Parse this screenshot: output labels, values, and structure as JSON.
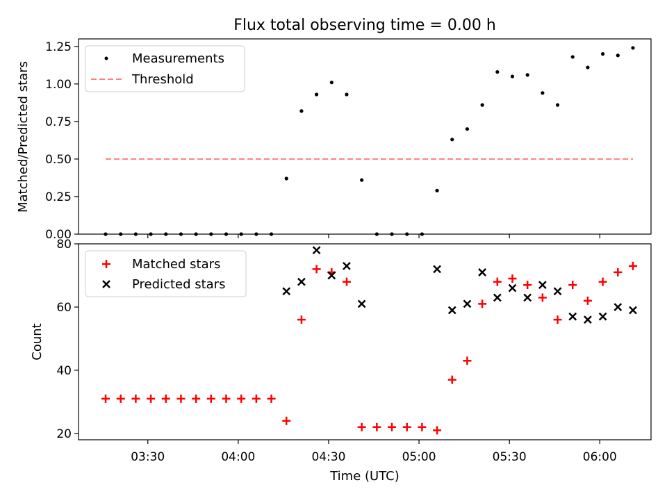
{
  "figure_title": "Flux total observing time = 0.00 h",
  "colors": {
    "measurements": "#000000",
    "threshold": "#ff7f7f",
    "matched": "#ff0000",
    "predicted": "#000000"
  },
  "chart_data": [
    {
      "type": "scatter",
      "title": "Flux total observing time = 0.00 h",
      "ylabel": "Matched/Predicted stars",
      "xlabel": "",
      "xlim": [
        "03:07",
        "06:17"
      ],
      "ylim": [
        0,
        1.3
      ],
      "yticks": [
        0.0,
        0.25,
        0.5,
        0.75,
        1.0,
        1.25
      ],
      "ytick_labels": [
        "0.00",
        "0.25",
        "0.50",
        "0.75",
        "1.00",
        "1.25"
      ],
      "xticks": [
        "03:30",
        "04:00",
        "04:30",
        "05:00",
        "05:30",
        "06:00"
      ],
      "legend_position": "top-left",
      "series": [
        {
          "name": "Measurements",
          "marker": "dot",
          "x": [
            "03:16",
            "03:21",
            "03:26",
            "03:31",
            "03:36",
            "03:41",
            "03:46",
            "03:51",
            "03:56",
            "04:01",
            "04:06",
            "04:11",
            "04:16",
            "04:21",
            "04:26",
            "04:31",
            "04:36",
            "04:41",
            "04:46",
            "04:51",
            "04:56",
            "05:01",
            "05:06",
            "05:11",
            "05:16",
            "05:21",
            "05:26",
            "05:31",
            "05:36",
            "05:41",
            "05:46",
            "05:51",
            "05:56",
            "06:01",
            "06:06",
            "06:11"
          ],
          "y": [
            0,
            0,
            0,
            0,
            0,
            0,
            0,
            0,
            0,
            0,
            0,
            0,
            0.37,
            0.82,
            0.93,
            1.01,
            0.93,
            0.36,
            0,
            0,
            0,
            0,
            0.29,
            0.63,
            0.7,
            0.86,
            1.08,
            1.05,
            1.06,
            0.94,
            0.86,
            1.18,
            1.11,
            1.2,
            1.19,
            1.24
          ]
        },
        {
          "name": "Threshold",
          "marker": "dashed-line",
          "x": [
            "03:16",
            "06:11"
          ],
          "y": [
            0.5,
            0.5
          ]
        }
      ]
    },
    {
      "type": "scatter",
      "title": "",
      "ylabel": "Count",
      "xlabel": "Time (UTC)",
      "xlim": [
        "03:07",
        "06:17"
      ],
      "ylim": [
        18,
        80
      ],
      "yticks": [
        20,
        40,
        60,
        80
      ],
      "ytick_labels": [
        "20",
        "40",
        "60",
        "80"
      ],
      "xticks": [
        "03:30",
        "04:00",
        "04:30",
        "05:00",
        "05:30",
        "06:00"
      ],
      "legend_position": "top-left",
      "series": [
        {
          "name": "Matched stars",
          "marker": "plus",
          "x": [
            "03:16",
            "03:21",
            "03:26",
            "03:31",
            "03:36",
            "03:41",
            "03:46",
            "03:51",
            "03:56",
            "04:01",
            "04:06",
            "04:11",
            "04:16",
            "04:21",
            "04:26",
            "04:31",
            "04:36",
            "04:41",
            "04:46",
            "04:51",
            "04:56",
            "05:01",
            "05:06",
            "05:11",
            "05:16",
            "05:21",
            "05:26",
            "05:31",
            "05:36",
            "05:41",
            "05:46",
            "05:51",
            "05:56",
            "06:01",
            "06:06",
            "06:11"
          ],
          "y": [
            31,
            31,
            31,
            31,
            31,
            31,
            31,
            31,
            31,
            31,
            31,
            31,
            24,
            56,
            72,
            71,
            68,
            22,
            22,
            22,
            22,
            22,
            21,
            37,
            43,
            61,
            68,
            69,
            67,
            63,
            56,
            67,
            62,
            68,
            71,
            73
          ]
        },
        {
          "name": "Predicted stars",
          "marker": "x",
          "x": [
            "04:16",
            "04:21",
            "04:26",
            "04:31",
            "04:36",
            "04:41",
            "05:06",
            "05:11",
            "05:16",
            "05:21",
            "05:26",
            "05:31",
            "05:36",
            "05:41",
            "05:46",
            "05:51",
            "05:56",
            "06:01",
            "06:06",
            "06:11"
          ],
          "y": [
            65,
            68,
            78,
            70,
            73,
            61,
            72,
            59,
            61,
            71,
            63,
            66,
            63,
            67,
            65,
            57,
            56,
            57,
            60,
            59
          ]
        }
      ]
    }
  ]
}
